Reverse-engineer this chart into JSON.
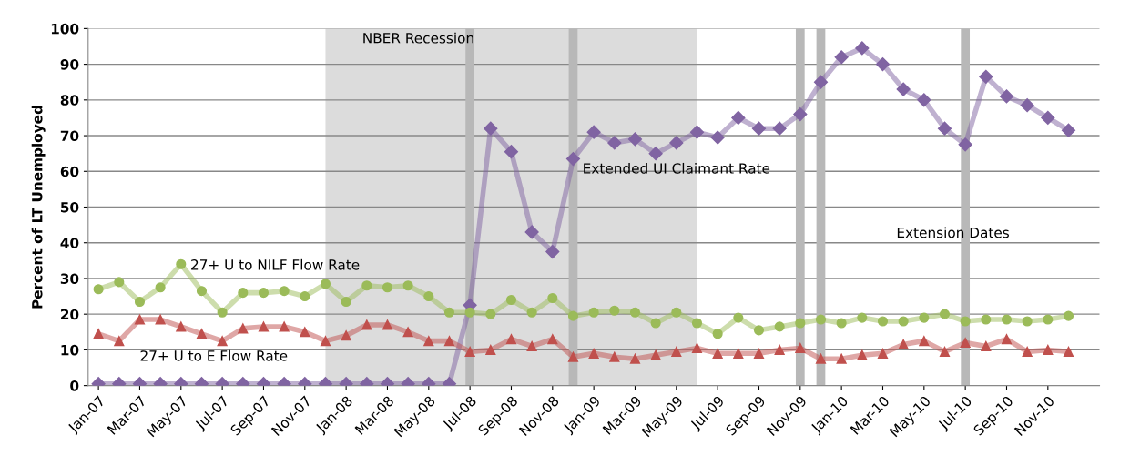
{
  "chart_data": {
    "type": "line",
    "ylabel": "Percent of LT Unemployed",
    "x": [
      "2007-01",
      "2007-02",
      "2007-03",
      "2007-04",
      "2007-05",
      "2007-06",
      "2007-07",
      "2007-08",
      "2007-09",
      "2007-10",
      "2007-11",
      "2007-12",
      "2008-01",
      "2008-02",
      "2008-03",
      "2008-04",
      "2008-05",
      "2008-06",
      "2008-07",
      "2008-08",
      "2008-09",
      "2008-10",
      "2008-11",
      "2008-12",
      "2009-01",
      "2009-02",
      "2009-03",
      "2009-04",
      "2009-05",
      "2009-06",
      "2009-07",
      "2009-08",
      "2009-09",
      "2009-10",
      "2009-11",
      "2009-12",
      "2010-01",
      "2010-02",
      "2010-03",
      "2010-04",
      "2010-05",
      "2010-06",
      "2010-07",
      "2010-08",
      "2010-09",
      "2010-10",
      "2010-11",
      "2010-12"
    ],
    "series": [
      {
        "name": "Extended UI Claimant Rate",
        "color": "#8064a2",
        "marker": "diamond",
        "values": [
          0.5,
          0.5,
          0.5,
          0.5,
          0.5,
          0.5,
          0.5,
          0.5,
          0.5,
          0.5,
          0.5,
          0.5,
          0.5,
          0.5,
          0.5,
          0.5,
          0.5,
          0.5,
          22.5,
          72,
          65.5,
          43,
          37.5,
          63.5,
          71,
          68,
          69,
          65,
          68,
          71,
          69.5,
          75,
          72,
          72,
          76,
          85,
          92,
          94.5,
          90,
          83,
          80,
          72,
          67.5,
          86.5,
          81,
          78.5,
          75,
          71.5
        ]
      },
      {
        "name": "27+ U to NILF Flow Rate",
        "color": "#9bbb59",
        "marker": "circle",
        "values": [
          27,
          29,
          23.5,
          27.5,
          34,
          26.5,
          20.5,
          26,
          26,
          26.5,
          25,
          28.5,
          23.5,
          28,
          27.5,
          28,
          25,
          20.5,
          20.5,
          20,
          24,
          20.5,
          24.5,
          19.5,
          20.5,
          21,
          20.5,
          17.5,
          20.5,
          17.5,
          14.5,
          19,
          15.5,
          16.5,
          17.5,
          18.5,
          17.5,
          19,
          18,
          18,
          19,
          20,
          18,
          18.5,
          18.5,
          18,
          18.5,
          19.5
        ]
      },
      {
        "name": "27+ U to E Flow Rate",
        "color": "#c0504d",
        "marker": "triangle",
        "values": [
          14.5,
          12.5,
          18.5,
          18.5,
          16.5,
          14.5,
          12.5,
          16,
          16.5,
          16.5,
          15,
          12.5,
          14,
          17,
          17,
          15,
          12.5,
          12.5,
          9.5,
          10,
          13,
          11,
          13,
          8,
          9,
          8,
          7.5,
          8.5,
          9.5,
          10.5,
          9,
          9,
          9,
          10,
          10.5,
          7.5,
          7.5,
          8.5,
          9,
          11.5,
          12.5,
          9.5,
          12,
          11,
          13,
          9.5,
          10,
          9.5
        ]
      }
    ],
    "xlim": [
      "2006-12-16",
      "2011-01-16"
    ],
    "xticks": [
      {
        "value": "2007-01",
        "label": "Jan-07"
      },
      {
        "value": "2007-03",
        "label": "Mar-07"
      },
      {
        "value": "2007-05",
        "label": "May-07"
      },
      {
        "value": "2007-07",
        "label": "Jul-07"
      },
      {
        "value": "2007-09",
        "label": "Sep-07"
      },
      {
        "value": "2007-11",
        "label": "Nov-07"
      },
      {
        "value": "2008-01",
        "label": "Jan-08"
      },
      {
        "value": "2008-03",
        "label": "Mar-08"
      },
      {
        "value": "2008-05",
        "label": "May-08"
      },
      {
        "value": "2008-07",
        "label": "Jul-08"
      },
      {
        "value": "2008-09",
        "label": "Sep-08"
      },
      {
        "value": "2008-11",
        "label": "Nov-08"
      },
      {
        "value": "2009-01",
        "label": "Jan-09"
      },
      {
        "value": "2009-03",
        "label": "Mar-09"
      },
      {
        "value": "2009-05",
        "label": "May-09"
      },
      {
        "value": "2009-07",
        "label": "Jul-09"
      },
      {
        "value": "2009-09",
        "label": "Sep-09"
      },
      {
        "value": "2009-11",
        "label": "Nov-09"
      },
      {
        "value": "2010-01",
        "label": "Jan-10"
      },
      {
        "value": "2010-03",
        "label": "Mar-10"
      },
      {
        "value": "2010-05",
        "label": "May-10"
      },
      {
        "value": "2010-07",
        "label": "Jul-10"
      },
      {
        "value": "2010-09",
        "label": "Sep-10"
      },
      {
        "value": "2010-11",
        "label": "Nov-10"
      }
    ],
    "ylim": [
      0,
      100
    ],
    "yticks": [
      0,
      10,
      20,
      30,
      40,
      50,
      60,
      70,
      80,
      90,
      100
    ],
    "grid": "y",
    "bands": [
      {
        "axis": "x",
        "from": "2007-12",
        "to": "2009-06",
        "label": "NBER Recession",
        "color": "#dcdcdc"
      }
    ],
    "ref_lines": [
      {
        "axis": "x",
        "value": "2008-07",
        "color": "#b8b8b8"
      },
      {
        "axis": "x",
        "value": "2008-12",
        "color": "#b8b8b8"
      },
      {
        "axis": "x",
        "value": "2009-11",
        "color": "#b8b8b8"
      },
      {
        "axis": "x",
        "value": "2009-12",
        "color": "#b8b8b8"
      },
      {
        "axis": "x",
        "value": "2010-07",
        "label": "Extension Dates",
        "color": "#b8b8b8"
      }
    ]
  }
}
